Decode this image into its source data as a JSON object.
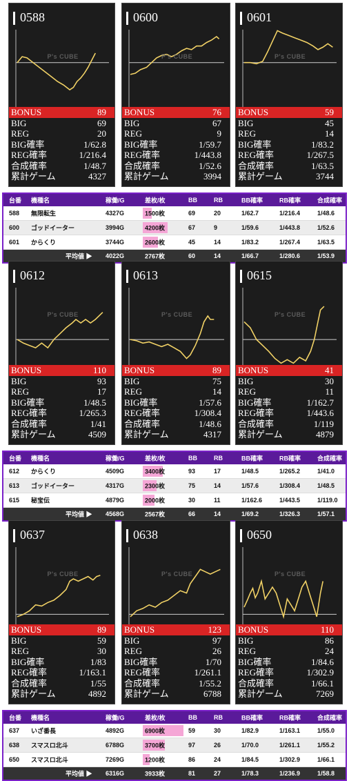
{
  "colors": {
    "panel_bg": "#1c1c1c",
    "bonus_red": "#d92424",
    "line": "#f2d266",
    "purple": "#6a1fb8"
  },
  "logo_text": "P's CUBE",
  "groups": [
    {
      "panels": [
        {
          "id": "0588",
          "bonus": "89",
          "big": "69",
          "reg": "20",
          "big_rate": "1/62.8",
          "reg_rate": "1/216.4",
          "total_rate": "1/48.7",
          "games": "4327"
        },
        {
          "id": "0600",
          "bonus": "76",
          "big": "67",
          "reg": "9",
          "big_rate": "1/59.7",
          "reg_rate": "1/443.8",
          "total_rate": "1/52.6",
          "games": "3994"
        },
        {
          "id": "0601",
          "bonus": "59",
          "big": "45",
          "reg": "14",
          "big_rate": "1/83.2",
          "reg_rate": "1/267.5",
          "total_rate": "1/63.5",
          "games": "3744"
        }
      ],
      "rows": [
        {
          "no": "588",
          "name": "無限転生",
          "games": "4327G",
          "diff": "1500枚",
          "bb": "69",
          "rb": "20",
          "bbr": "1/62.7",
          "rbr": "1/216.4",
          "tr": "1/48.6",
          "diffv": 1500
        },
        {
          "no": "600",
          "name": "ゴッドイーター",
          "games": "3994G",
          "diff": "4200枚",
          "bb": "67",
          "rb": "9",
          "bbr": "1/59.6",
          "rbr": "1/443.8",
          "tr": "1/52.6",
          "diffv": 4200
        },
        {
          "no": "601",
          "name": "からくり",
          "games": "3744G",
          "diff": "2600枚",
          "bb": "45",
          "rb": "14",
          "bbr": "1/83.2",
          "rbr": "1/267.4",
          "tr": "1/63.5",
          "diffv": 2600
        }
      ],
      "avg": {
        "label": "平均値 ▶",
        "games": "4022G",
        "diff": "2767枚",
        "bb": "60",
        "rb": "14",
        "bbr": "1/66.7",
        "rbr": "1/280.6",
        "tr": "1/53.9"
      }
    },
    {
      "panels": [
        {
          "id": "0612",
          "bonus": "110",
          "big": "93",
          "reg": "17",
          "big_rate": "1/48.5",
          "reg_rate": "1/265.3",
          "total_rate": "1/41",
          "games": "4509"
        },
        {
          "id": "0613",
          "bonus": "89",
          "big": "75",
          "reg": "14",
          "big_rate": "1/57.6",
          "reg_rate": "1/308.4",
          "total_rate": "1/48.6",
          "games": "4317"
        },
        {
          "id": "0615",
          "bonus": "41",
          "big": "30",
          "reg": "11",
          "big_rate": "1/162.7",
          "reg_rate": "1/443.6",
          "total_rate": "1/119",
          "games": "4879"
        }
      ],
      "rows": [
        {
          "no": "612",
          "name": "からくり",
          "games": "4509G",
          "diff": "3400枚",
          "bb": "93",
          "rb": "17",
          "bbr": "1/48.5",
          "rbr": "1/265.2",
          "tr": "1/41.0",
          "diffv": 3400
        },
        {
          "no": "613",
          "name": "ゴッドイーター",
          "games": "4317G",
          "diff": "2300枚",
          "bb": "75",
          "rb": "14",
          "bbr": "1/57.6",
          "rbr": "1/308.4",
          "tr": "1/48.5",
          "diffv": 2300
        },
        {
          "no": "615",
          "name": "秘宝伝",
          "games": "4879G",
          "diff": "2000枚",
          "bb": "30",
          "rb": "11",
          "bbr": "1/162.6",
          "rbr": "1/443.5",
          "tr": "1/119.0",
          "diffv": 2000
        }
      ],
      "avg": {
        "label": "平均値 ▶",
        "games": "4568G",
        "diff": "2567枚",
        "bb": "66",
        "rb": "14",
        "bbr": "1/69.2",
        "rbr": "1/326.3",
        "tr": "1/57.1"
      }
    },
    {
      "panels": [
        {
          "id": "0637",
          "bonus": "89",
          "big": "59",
          "reg": "30",
          "big_rate": "1/83",
          "reg_rate": "1/163.1",
          "total_rate": "1/55",
          "games": "4892"
        },
        {
          "id": "0638",
          "bonus": "123",
          "big": "97",
          "reg": "26",
          "big_rate": "1/70",
          "reg_rate": "1/261.1",
          "total_rate": "1/55.2",
          "games": "6788"
        },
        {
          "id": "0650",
          "bonus": "110",
          "big": "86",
          "reg": "24",
          "big_rate": "1/84.6",
          "reg_rate": "1/302.9",
          "total_rate": "1/66.1",
          "games": "7269"
        }
      ],
      "rows": [
        {
          "no": "637",
          "name": "いざ番長",
          "games": "4892G",
          "diff": "6900枚",
          "bb": "59",
          "rb": "30",
          "bbr": "1/82.9",
          "rbr": "1/163.1",
          "tr": "1/55.0",
          "diffv": 6900
        },
        {
          "no": "638",
          "name": "スマスロ北斗",
          "games": "6788G",
          "diff": "3700枚",
          "bb": "97",
          "rb": "26",
          "bbr": "1/70.0",
          "rbr": "1/261.1",
          "tr": "1/55.2",
          "diffv": 3700
        },
        {
          "no": "650",
          "name": "スマスロ北斗",
          "games": "7269G",
          "diff": "1200枚",
          "bb": "86",
          "rb": "24",
          "bbr": "1/84.5",
          "rbr": "1/302.9",
          "tr": "1/66.1",
          "diffv": 1200
        }
      ],
      "avg": {
        "label": "平均値 ▶",
        "games": "6316G",
        "diff": "3933枚",
        "bb": "81",
        "rb": "27",
        "bbr": "1/78.3",
        "rbr": "1/236.9",
        "tr": "1/58.8"
      }
    }
  ],
  "table_headers": {
    "no": "台番",
    "name": "機種名",
    "games": "稼働/G",
    "diff": "差枚/枚",
    "bb": "BB",
    "rb": "RB",
    "bbr": "BB確率",
    "rbr": "RB確率",
    "tr": "合成確率"
  },
  "stat_labels": {
    "bonus": "BONUS",
    "big": "BIG",
    "reg": "REG",
    "big_rate": "BIG確率",
    "reg_rate": "REG確率",
    "total_rate": "合成確率",
    "games": "累計ゲーム"
  }
}
